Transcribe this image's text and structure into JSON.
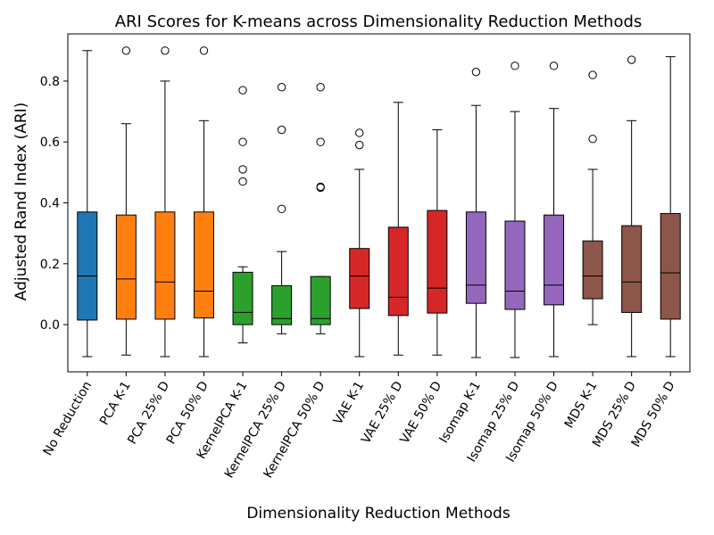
{
  "chart_data": {
    "type": "box",
    "title": "ARI Scores for K-means across Dimensionality Reduction Methods",
    "xlabel": "Dimensionality Reduction Methods",
    "ylabel": "Adjusted Rand Index (ARI)",
    "ylim": [
      -0.155,
      0.955
    ],
    "yticks": [
      "0.0",
      "0.2",
      "0.4",
      "0.6",
      "0.8"
    ],
    "grid": false,
    "categories": [
      "No Reduction",
      "PCA K-1",
      "PCA 25% D",
      "PCA 50% D",
      "KernelPCA K-1",
      "KernelPCA 25% D",
      "KernelPCA 50% D",
      "VAE K-1",
      "VAE 25% D",
      "VAE 50% D",
      "Isomap K-1",
      "Isomap 25% D",
      "Isomap 50% D",
      "MDS K-1",
      "MDS 25% D",
      "MDS 50% D"
    ],
    "colors": [
      "#1f77b4",
      "#ff7f0e",
      "#ff7f0e",
      "#ff7f0e",
      "#2ca02c",
      "#2ca02c",
      "#2ca02c",
      "#d62728",
      "#d62728",
      "#d62728",
      "#9467bd",
      "#9467bd",
      "#9467bd",
      "#8c564b",
      "#8c564b",
      "#8c564b"
    ],
    "boxes": [
      {
        "whislo": -0.105,
        "q1": 0.015,
        "med": 0.16,
        "q3": 0.37,
        "whishi": 0.9,
        "fliers": []
      },
      {
        "whislo": -0.1,
        "q1": 0.018,
        "med": 0.15,
        "q3": 0.36,
        "whishi": 0.66,
        "fliers": [
          0.9
        ]
      },
      {
        "whislo": -0.105,
        "q1": 0.018,
        "med": 0.14,
        "q3": 0.37,
        "whishi": 0.8,
        "fliers": [
          0.9
        ]
      },
      {
        "whislo": -0.105,
        "q1": 0.022,
        "med": 0.11,
        "q3": 0.37,
        "whishi": 0.67,
        "fliers": [
          0.9
        ]
      },
      {
        "whislo": -0.06,
        "q1": 0.0,
        "med": 0.04,
        "q3": 0.172,
        "whishi": 0.19,
        "fliers": [
          0.47,
          0.51,
          0.6,
          0.77
        ]
      },
      {
        "whislo": -0.03,
        "q1": 0.0,
        "med": 0.02,
        "q3": 0.128,
        "whishi": 0.24,
        "fliers": [
          0.38,
          0.64,
          0.78
        ]
      },
      {
        "whislo": -0.03,
        "q1": 0.0,
        "med": 0.02,
        "q3": 0.158,
        "whishi": 0.158,
        "fliers": [
          0.45,
          0.453,
          0.6,
          0.78
        ]
      },
      {
        "whislo": -0.105,
        "q1": 0.053,
        "med": 0.16,
        "q3": 0.25,
        "whishi": 0.51,
        "fliers": [
          0.59,
          0.63
        ]
      },
      {
        "whislo": -0.1,
        "q1": 0.03,
        "med": 0.09,
        "q3": 0.32,
        "whishi": 0.73,
        "fliers": []
      },
      {
        "whislo": -0.1,
        "q1": 0.038,
        "med": 0.12,
        "q3": 0.375,
        "whishi": 0.64,
        "fliers": []
      },
      {
        "whislo": -0.108,
        "q1": 0.07,
        "med": 0.13,
        "q3": 0.37,
        "whishi": 0.72,
        "fliers": [
          0.83
        ]
      },
      {
        "whislo": -0.108,
        "q1": 0.05,
        "med": 0.11,
        "q3": 0.34,
        "whishi": 0.7,
        "fliers": [
          0.85
        ]
      },
      {
        "whislo": -0.105,
        "q1": 0.065,
        "med": 0.13,
        "q3": 0.36,
        "whishi": 0.71,
        "fliers": [
          0.85
        ]
      },
      {
        "whislo": 0.0,
        "q1": 0.085,
        "med": 0.16,
        "q3": 0.275,
        "whishi": 0.51,
        "fliers": [
          0.61,
          0.82
        ]
      },
      {
        "whislo": -0.105,
        "q1": 0.04,
        "med": 0.14,
        "q3": 0.325,
        "whishi": 0.67,
        "fliers": [
          0.87
        ]
      },
      {
        "whislo": -0.105,
        "q1": 0.018,
        "med": 0.17,
        "q3": 0.365,
        "whishi": 0.88,
        "fliers": []
      }
    ]
  }
}
